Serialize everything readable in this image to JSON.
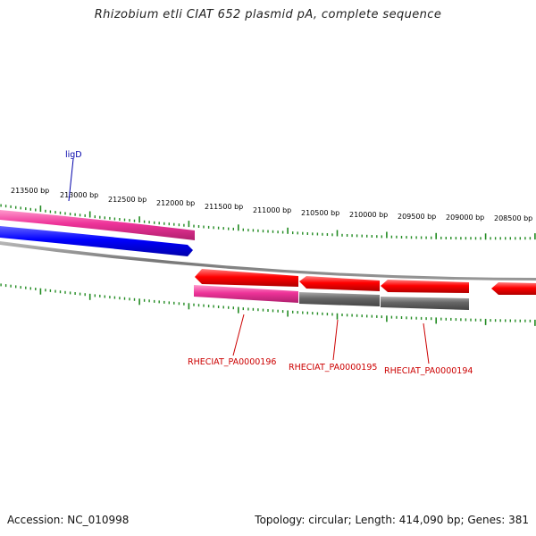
{
  "title": "Rhizobium etli CIAT 652 plasmid pA, complete sequence",
  "accession": "Accession: NC_010998",
  "topology_info": "Topology: circular; Length: 414,090 bp; Genes: 381",
  "bp_labels": [
    "213500 bp",
    "213000 bp",
    "212500 bp",
    "212000 bp",
    "211500 bp",
    "211000 bp",
    "210500 bp",
    "210000 bp",
    "209500 bp",
    "209000 bp",
    "208500 bp"
  ],
  "gene_labels": {
    "ligD": "ligD",
    "pa196": "RHECIAT_PA0000196",
    "pa195": "RHECIAT_PA0000195",
    "pa194": "RHECIAT_PA0000194"
  },
  "colors": {
    "pink": "#ee3399",
    "blue": "#0000ff",
    "red": "#ff0000",
    "gray": "#666666",
    "backbone": "#888888",
    "tick": "#228b22",
    "label_red": "#cc0000",
    "label_blue": "#0000aa"
  }
}
